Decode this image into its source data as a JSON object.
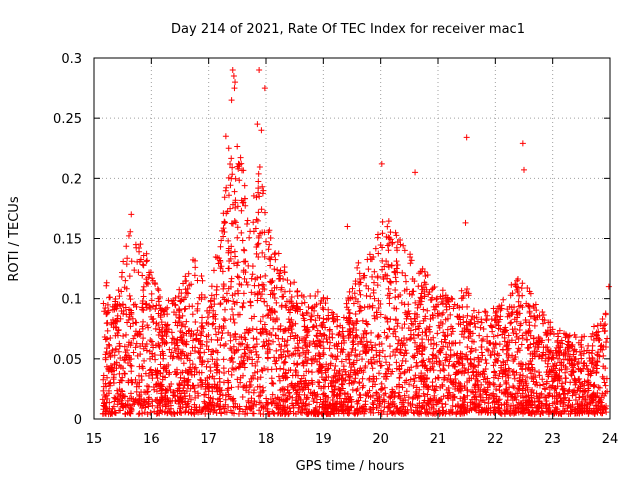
{
  "chart_data": {
    "type": "scatter",
    "title": "Day 214 of 2021, Rate Of TEC Index for receiver mac1",
    "xlabel": "GPS time / hours",
    "ylabel": "ROTI / TECUs",
    "xlim": [
      15,
      24
    ],
    "ylim": [
      0,
      0.3
    ],
    "xticks": [
      15,
      16,
      17,
      18,
      19,
      20,
      21,
      22,
      23,
      24
    ],
    "xtick_labels": [
      "15",
      "16",
      "17",
      "18",
      "19",
      "20",
      "21",
      "22",
      "23",
      "24"
    ],
    "yticks": [
      0,
      0.05,
      0.1,
      0.15,
      0.2,
      0.25,
      0.3
    ],
    "ytick_labels": [
      "0",
      "0.05",
      "0.1",
      "0.15",
      "0.2",
      "0.25",
      "0.3"
    ],
    "grid": true,
    "marker": "plus",
    "marker_color": "#ff0000",
    "series": [
      {
        "name": "ROTI",
        "envelope": {
          "x": [
            15.15,
            15.4,
            15.6,
            15.9,
            16.2,
            16.5,
            16.8,
            17.0,
            17.3,
            17.5,
            17.7,
            17.9,
            18.1,
            18.4,
            18.7,
            19.0,
            19.3,
            19.6,
            19.9,
            20.0,
            20.3,
            20.6,
            20.9,
            21.2,
            21.5,
            21.8,
            22.1,
            22.4,
            22.7,
            23.0,
            23.3,
            23.6,
            23.95
          ],
          "peak": [
            0.12,
            0.1,
            0.16,
            0.14,
            0.1,
            0.11,
            0.14,
            0.09,
            0.2,
            0.24,
            0.18,
            0.22,
            0.15,
            0.12,
            0.1,
            0.11,
            0.08,
            0.13,
            0.14,
            0.17,
            0.16,
            0.13,
            0.12,
            0.1,
            0.11,
            0.09,
            0.1,
            0.12,
            0.1,
            0.08,
            0.07,
            0.07,
            0.09
          ]
        },
        "outliers": [
          {
            "x": 17.42,
            "y": 0.29
          },
          {
            "x": 17.44,
            "y": 0.285
          },
          {
            "x": 17.46,
            "y": 0.28
          },
          {
            "x": 17.45,
            "y": 0.275
          },
          {
            "x": 17.4,
            "y": 0.265
          },
          {
            "x": 17.88,
            "y": 0.29
          },
          {
            "x": 17.98,
            "y": 0.275
          },
          {
            "x": 17.85,
            "y": 0.245
          },
          {
            "x": 17.92,
            "y": 0.24
          },
          {
            "x": 20.02,
            "y": 0.212
          },
          {
            "x": 20.6,
            "y": 0.205
          },
          {
            "x": 21.5,
            "y": 0.234
          },
          {
            "x": 22.48,
            "y": 0.229
          },
          {
            "x": 22.5,
            "y": 0.207
          },
          {
            "x": 21.48,
            "y": 0.163
          },
          {
            "x": 23.98,
            "y": 0.11
          },
          {
            "x": 19.42,
            "y": 0.16
          },
          {
            "x": 15.65,
            "y": 0.17
          },
          {
            "x": 17.3,
            "y": 0.235
          },
          {
            "x": 17.35,
            "y": 0.225
          }
        ]
      }
    ]
  }
}
